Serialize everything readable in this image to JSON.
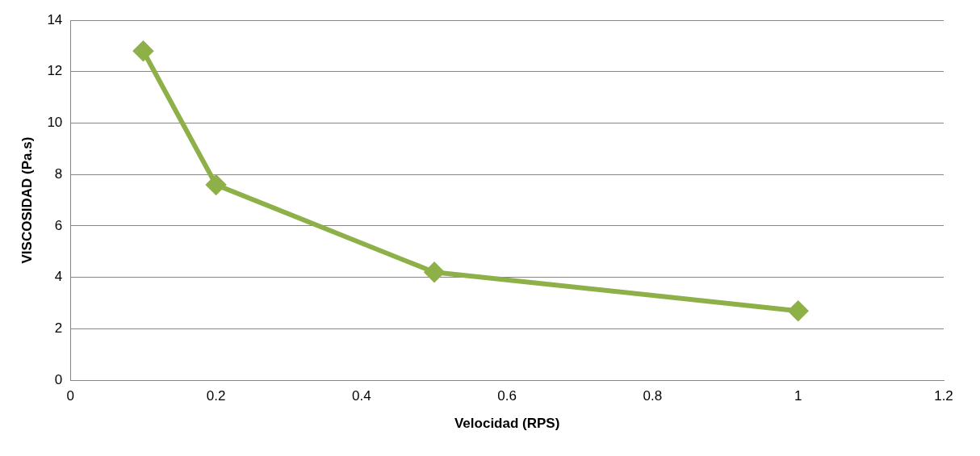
{
  "chart_data": {
    "type": "line",
    "xlabel": "Velocidad (RPS)",
    "ylabel": "VISCOSIDAD (Pa.s)",
    "x": [
      0.1,
      0.2,
      0.5,
      1
    ],
    "series": [
      {
        "color": "#8db048",
        "values": [
          12.8,
          7.6,
          4.2,
          2.7
        ]
      }
    ],
    "xlim": [
      0,
      1.2
    ],
    "xticks": [
      0,
      0.2,
      0.4,
      0.6,
      0.8,
      1,
      1.2
    ],
    "ylim": [
      0,
      14
    ],
    "yticks": [
      0,
      2,
      4,
      6,
      8,
      10,
      12,
      14
    ],
    "grid": "y",
    "legend": false,
    "marker": "diamond",
    "line_style": "solid"
  }
}
